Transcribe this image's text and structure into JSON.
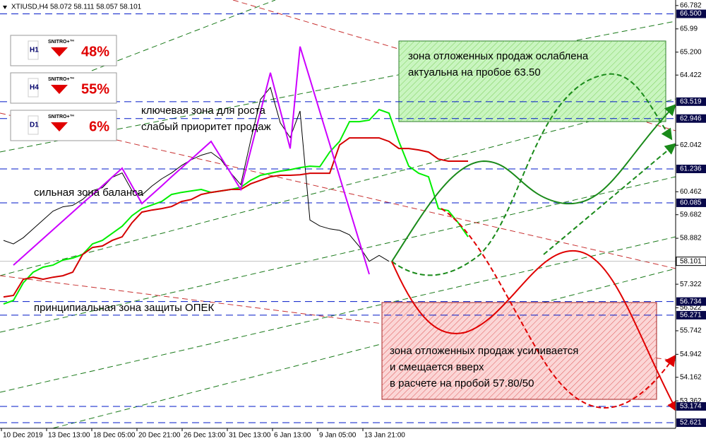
{
  "header": {
    "symbol": "XTIUSD,H4 58.072 58.111 58.057 58.101"
  },
  "panels": [
    {
      "timeframe": "H1",
      "brand": "SNITRO+™",
      "percent": "48%"
    },
    {
      "timeframe": "H4",
      "brand": "SNITRO+™",
      "percent": "55%"
    },
    {
      "timeframe": "D1",
      "brand": "SNITRO+™",
      "percent": "6%"
    }
  ],
  "annotations": {
    "green_zone": [
      "зона отложенных продаж ослаблена",
      "актуальна на пробое 63.50"
    ],
    "key_zone": [
      "ключевая зона для роста",
      "слабый приоритет продаж"
    ],
    "balance": "сильная зона баланса",
    "opec": "принципиальная зона защиты ОПЕК",
    "red_zone": [
      "зона отложенных продаж усиливается",
      "и смещается вверх",
      "в расчете на пробой 57.80/50"
    ]
  },
  "time_labels": [
    "10 Dec 2019",
    "13 Dec 13:00",
    "18 Dec 05:00",
    "20 Dec 21:00",
    "26 Dec 13:00",
    "31 Dec 13:00",
    "6 Jan 13:00",
    "9 Jan 05:00",
    "13 Jan 21:00"
  ],
  "chart_data": {
    "type": "line",
    "ylim": [
      52.43,
      66.97
    ],
    "yticks": [
      66.782,
      65.99,
      {
        "value": 65.2,
        "label": "65.200"
      },
      64.422,
      62.042,
      60.462,
      59.682,
      58.882,
      57.322,
      56.522,
      55.742,
      54.942,
      54.162,
      53.362
    ],
    "levels": [
      {
        "value": 66.5,
        "label": "66.500"
      },
      63.519,
      62.946,
      61.236,
      60.085,
      56.734,
      56.271,
      53.174,
      52.621
    ],
    "last_price": 58.101,
    "series": [
      {
        "name": "price",
        "color": "#000000",
        "values": [
          58.81,
          58.69,
          58.9,
          59.2,
          59.5,
          59.8,
          59.95,
          60.0,
          60.2,
          60.5,
          60.6,
          60.95,
          61.1,
          60.5,
          60.35,
          60.65,
          60.9,
          61.1,
          61.35,
          61.55,
          61.7,
          61.8,
          61.55,
          61.1,
          60.7,
          62.2,
          63.6,
          64.0,
          62.8,
          62.3,
          63.2,
          59.5,
          59.3,
          59.2,
          59.15,
          59.0,
          58.6,
          58.1,
          58.3,
          58.1,
          null,
          null,
          null,
          null,
          null,
          null,
          null,
          null
        ]
      },
      {
        "name": "span-a",
        "color": "#00ee00",
        "values": [
          56.65,
          56.77,
          57.37,
          57.73,
          57.9,
          57.97,
          58.14,
          58.21,
          58.33,
          58.69,
          58.81,
          59.05,
          59.29,
          59.65,
          59.89,
          60.01,
          60.13,
          60.37,
          60.44,
          60.49,
          60.54,
          60.44,
          60.49,
          60.54,
          60.61,
          60.85,
          61.02,
          61.09,
          61.16,
          61.21,
          61.28,
          61.33,
          61.31,
          61.81,
          62.17,
          62.84,
          62.84,
          62.89,
          63.25,
          63.13,
          62.17,
          61.33,
          61.09,
          60.97,
          59.89,
          59.82,
          59.41,
          58.93
        ]
      },
      {
        "name": "span-b",
        "color": "#d40000",
        "values": [
          56.89,
          56.94,
          57.49,
          57.56,
          57.49,
          57.56,
          57.61,
          57.73,
          58.33,
          58.57,
          58.62,
          58.81,
          58.93,
          59.41,
          59.77,
          59.84,
          59.89,
          59.96,
          60.13,
          60.2,
          60.37,
          60.44,
          60.49,
          60.54,
          60.54,
          60.73,
          60.85,
          60.97,
          61.02,
          61.02,
          61.04,
          61.09,
          61.09,
          61.09,
          62.05,
          62.29,
          62.29,
          62.29,
          62.29,
          62.17,
          61.93,
          61.93,
          61.88,
          61.81,
          61.57,
          61.5,
          61.5,
          61.5
        ]
      },
      {
        "name": "zigzag",
        "color": "#cc00ff",
        "values": [
          null,
          57.97,
          58.27,
          58.57,
          58.87,
          59.17,
          59.47,
          59.77,
          60.07,
          60.36,
          60.66,
          60.96,
          61.26,
          60.66,
          60.06,
          60.36,
          60.66,
          60.97,
          61.27,
          61.57,
          61.87,
          62.17,
          61.63,
          61.09,
          60.54,
          61.86,
          63.18,
          64.5,
          63.22,
          61.93,
          65.39,
          64.29,
          63.18,
          62.08,
          60.97,
          59.87,
          58.77,
          57.66,
          null,
          null,
          null,
          null,
          null,
          null,
          null,
          null,
          null,
          null
        ]
      }
    ]
  }
}
